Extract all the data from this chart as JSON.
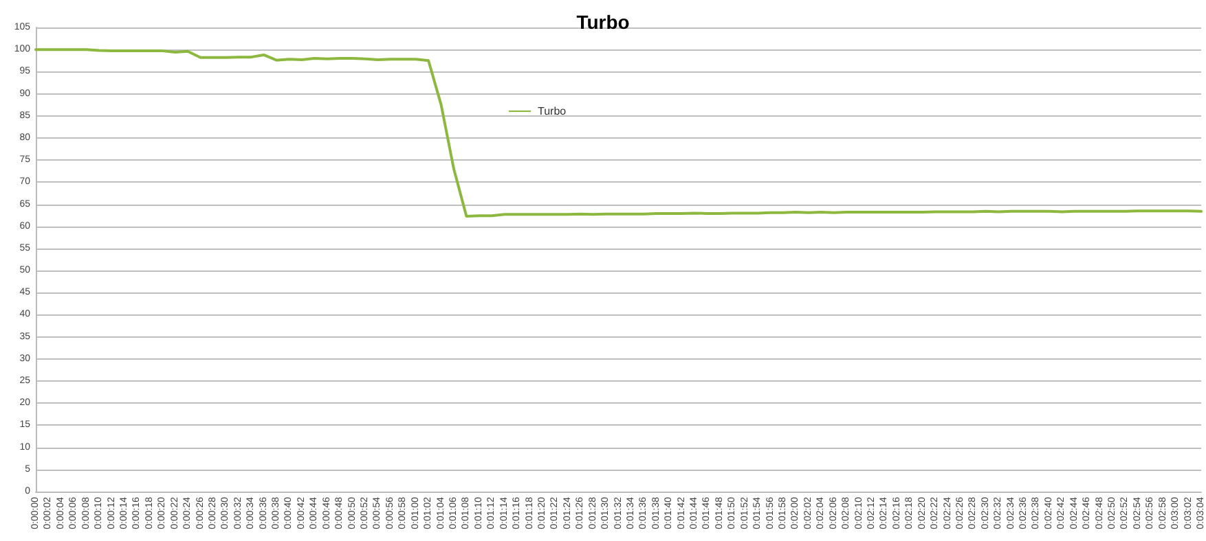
{
  "chart_data": {
    "type": "line",
    "title": "Turbo",
    "categories": [
      "0:00:00",
      "0:00:02",
      "0:00:04",
      "0:00:06",
      "0:00:08",
      "0:00:10",
      "0:00:12",
      "0:00:14",
      "0:00:16",
      "0:00:18",
      "0:00:20",
      "0:00:22",
      "0:00:24",
      "0:00:26",
      "0:00:28",
      "0:00:30",
      "0:00:32",
      "0:00:34",
      "0:00:36",
      "0:00:38",
      "0:00:40",
      "0:00:42",
      "0:00:44",
      "0:00:46",
      "0:00:48",
      "0:00:50",
      "0:00:52",
      "0:00:54",
      "0:00:56",
      "0:00:58",
      "0:01:00",
      "0:01:02",
      "0:01:04",
      "0:01:06",
      "0:01:08",
      "0:01:10",
      "0:01:12",
      "0:01:14",
      "0:01:16",
      "0:01:18",
      "0:01:20",
      "0:01:22",
      "0:01:24",
      "0:01:26",
      "0:01:28",
      "0:01:30",
      "0:01:32",
      "0:01:34",
      "0:01:36",
      "0:01:38",
      "0:01:40",
      "0:01:42",
      "0:01:44",
      "0:01:46",
      "0:01:48",
      "0:01:50",
      "0:01:52",
      "0:01:54",
      "0:01:56",
      "0:01:58",
      "0:02:00",
      "0:02:02",
      "0:02:04",
      "0:02:06",
      "0:02:08",
      "0:02:10",
      "0:02:12",
      "0:02:14",
      "0:02:16",
      "0:02:18",
      "0:02:20",
      "0:02:22",
      "0:02:24",
      "0:02:26",
      "0:02:28",
      "0:02:30",
      "0:02:32",
      "0:02:34",
      "0:02:36",
      "0:02:38",
      "0:02:40",
      "0:02:42",
      "0:02:44",
      "0:02:46",
      "0:02:48",
      "0:02:50",
      "0:02:52",
      "0:02:54",
      "0:02:56",
      "0:02:58",
      "0:03:00",
      "0:03:02",
      "0:03:04"
    ],
    "series": [
      {
        "name": "Turbo",
        "color": "#8db83f",
        "values": [
          100,
          100,
          100,
          100,
          100,
          99.8,
          99.7,
          99.7,
          99.7,
          99.7,
          99.7,
          99.4,
          99.6,
          98.2,
          98.2,
          98.2,
          98.3,
          98.3,
          98.8,
          97.6,
          97.8,
          97.7,
          98.0,
          97.9,
          98.0,
          98.0,
          97.9,
          97.7,
          97.8,
          97.8,
          97.8,
          97.5,
          87.5,
          73,
          62.3,
          62.4,
          62.4,
          62.7,
          62.7,
          62.7,
          62.7,
          62.7,
          62.7,
          62.8,
          62.7,
          62.8,
          62.8,
          62.8,
          62.8,
          62.9,
          62.9,
          62.9,
          63.0,
          62.9,
          62.9,
          63.0,
          63.0,
          63.0,
          63.1,
          63.1,
          63.2,
          63.1,
          63.2,
          63.1,
          63.2,
          63.2,
          63.2,
          63.2,
          63.2,
          63.2,
          63.2,
          63.3,
          63.3,
          63.3,
          63.3,
          63.4,
          63.3,
          63.4,
          63.4,
          63.4,
          63.4,
          63.3,
          63.4,
          63.4,
          63.4,
          63.4,
          63.4,
          63.5,
          63.5,
          63.5,
          63.5,
          63.5,
          63.4
        ]
      }
    ],
    "ylim": [
      0,
      105
    ],
    "yticks": [
      0,
      5,
      10,
      15,
      20,
      25,
      30,
      35,
      40,
      45,
      50,
      55,
      60,
      65,
      70,
      75,
      80,
      85,
      90,
      95,
      100,
      105
    ],
    "grid": "y",
    "legend": "top left",
    "marker": "none",
    "line_style": "solid"
  }
}
